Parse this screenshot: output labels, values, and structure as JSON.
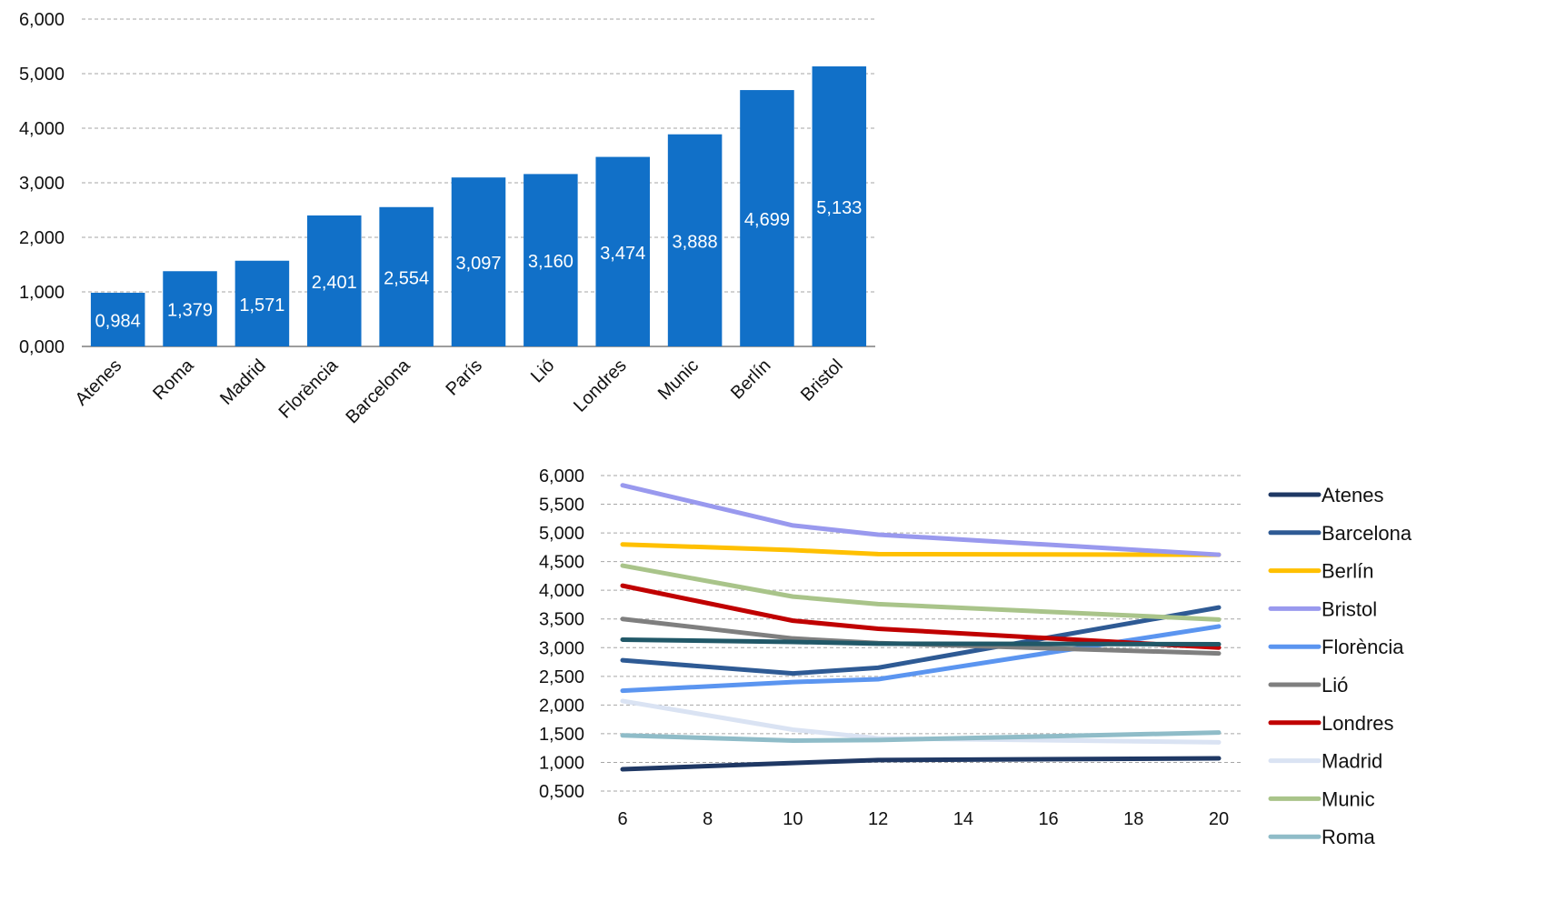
{
  "chart_data": [
    {
      "type": "bar",
      "categories": [
        "Atenes",
        "Roma",
        "Madrid",
        "Florència",
        "Barcelona",
        "París",
        "Lió",
        "Londres",
        "Munic",
        "Berlín",
        "Bristol"
      ],
      "values": [
        0.984,
        1.379,
        1.571,
        2.401,
        2.554,
        3.097,
        3.16,
        3.474,
        3.888,
        4.699,
        5.133
      ],
      "data_labels": [
        "0,984",
        "1,379",
        "1,571",
        "2,401",
        "2,554",
        "3,097",
        "3,160",
        "3,474",
        "3,888",
        "4,699",
        "5,133"
      ],
      "y_ticks": [
        0,
        1,
        2,
        3,
        4,
        5,
        6
      ],
      "y_tick_labels": [
        "0,000",
        "1,000",
        "2,000",
        "3,000",
        "4,000",
        "5,000",
        "6,000"
      ],
      "ylim": [
        0,
        6
      ],
      "grid": true,
      "bar_color": "#1170c8",
      "title": "",
      "xlabel": "",
      "ylabel": ""
    },
    {
      "type": "line",
      "x": [
        6,
        10,
        12,
        20
      ],
      "x_ticks": [
        6,
        8,
        10,
        12,
        14,
        16,
        18,
        20
      ],
      "xlim": [
        6,
        20
      ],
      "y_ticks": [
        0.5,
        1.0,
        1.5,
        2.0,
        2.5,
        3.0,
        3.5,
        4.0,
        4.5,
        5.0,
        5.5,
        6.0
      ],
      "y_tick_labels": [
        "0,500",
        "1,000",
        "1,500",
        "2,000",
        "2,500",
        "3,000",
        "3,500",
        "4,000",
        "4,500",
        "5,000",
        "5,500",
        "6,000"
      ],
      "ylim": [
        0.5,
        6.0
      ],
      "grid": true,
      "legend_position": "right",
      "title": "",
      "xlabel": "",
      "ylabel": "",
      "series": [
        {
          "name": "Atenes",
          "color": "#1f3864",
          "values": [
            0.88,
            0.99,
            1.04,
            1.07
          ]
        },
        {
          "name": "Barcelona",
          "color": "#2e5a94",
          "values": [
            2.78,
            2.55,
            2.65,
            3.7
          ]
        },
        {
          "name": "Berlín",
          "color": "#ffc000",
          "values": [
            4.8,
            4.7,
            4.63,
            4.62
          ]
        },
        {
          "name": "Bristol",
          "color": "#9999ee",
          "values": [
            5.83,
            5.13,
            4.97,
            4.62
          ]
        },
        {
          "name": "Florència",
          "color": "#5b95f0",
          "values": [
            2.25,
            2.4,
            2.45,
            3.37
          ]
        },
        {
          "name": "Lió",
          "color": "#7f7f7f",
          "values": [
            3.5,
            3.16,
            3.08,
            2.9
          ]
        },
        {
          "name": "Londres",
          "color": "#c00000",
          "values": [
            4.08,
            3.47,
            3.33,
            3.0
          ]
        },
        {
          "name": "Madrid",
          "color": "#dae3f3",
          "values": [
            2.07,
            1.57,
            1.42,
            1.35
          ]
        },
        {
          "name": "Munic",
          "color": "#a9c48a",
          "values": [
            4.43,
            3.89,
            3.76,
            3.49
          ]
        },
        {
          "name": "Roma",
          "color": "#8fbcc8",
          "values": [
            1.47,
            1.38,
            1.39,
            1.52
          ]
        },
        {
          "name": "",
          "color": "#215868",
          "values": [
            3.14,
            3.1,
            3.07,
            3.06
          ]
        }
      ]
    }
  ]
}
